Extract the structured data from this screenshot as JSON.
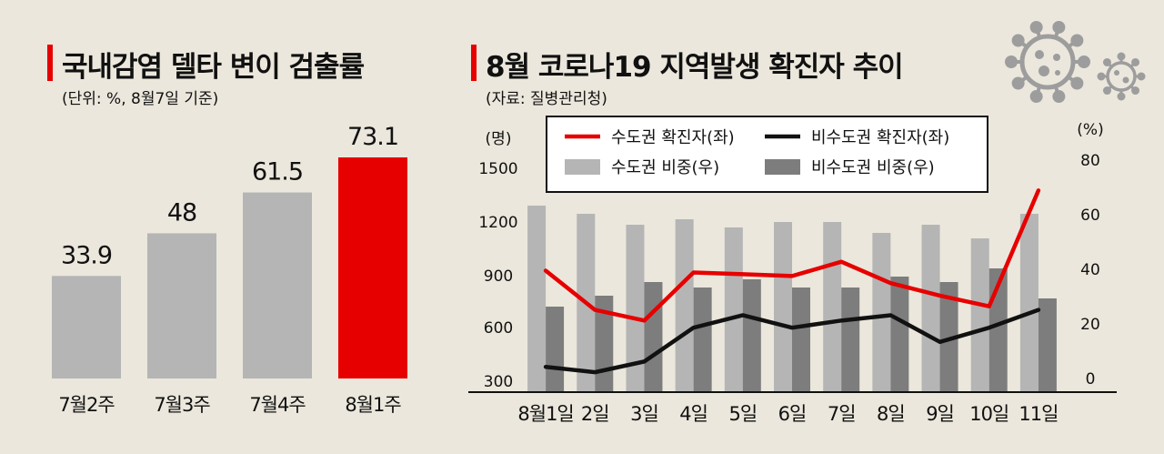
{
  "left_panel": {
    "title": "국내감염 델타 변이 검출률",
    "subtitle": "(단위: %, 8월7일 기준)"
  },
  "right_panel": {
    "title": "8월 코로나19 지역발생 확진자 추이",
    "subtitle": "(자료: 질병관리청)"
  },
  "icons": [
    "virus-icon",
    "virus-icon"
  ],
  "colors": {
    "background": "#ebe7dc",
    "accent_red": "#e60000",
    "bar_gray": "#b5b5b5",
    "bar_dark": "#7d7d7d"
  },
  "chart_data": [
    {
      "type": "bar",
      "title": "국내감염 델타 변이 검출률",
      "subtitle": "(단위: %, 8월7일 기준)",
      "categories": [
        "7월2주",
        "7월3주",
        "7월4주",
        "8월1주"
      ],
      "values": [
        33.9,
        48,
        61.5,
        73.1
      ],
      "value_labels": [
        "33.9",
        "48",
        "61.5",
        "73.1"
      ],
      "highlight_index": 3,
      "ylim": [
        0,
        80
      ]
    },
    {
      "type": "bar+line",
      "title": "8월 코로나19 지역발생 확진자 추이",
      "subtitle": "(자료: 질병관리청)",
      "categories": [
        "8월1일",
        "2일",
        "3일",
        "4일",
        "5일",
        "6일",
        "7일",
        "8일",
        "9일",
        "10일",
        "11일"
      ],
      "left_axis": {
        "unit": "(명)",
        "ticks": [
          "1500",
          "1200",
          "900",
          "600",
          "300"
        ],
        "ylim": [
          300,
          1500
        ]
      },
      "right_axis": {
        "unit": "(%)",
        "ticks": [
          "80",
          "60",
          "40",
          "20",
          "0"
        ],
        "ylim": [
          0,
          80
        ]
      },
      "grid": false,
      "legend_position": "top",
      "series": [
        {
          "name": "수도권 확진자(좌)",
          "kind": "line",
          "axis": "left",
          "color": "#e60000",
          "values": [
            900,
            680,
            620,
            890,
            880,
            870,
            950,
            830,
            760,
            700,
            1350
          ]
        },
        {
          "name": "비수도권 확진자(좌)",
          "kind": "line",
          "axis": "left",
          "color": "#111111",
          "values": [
            360,
            330,
            390,
            580,
            650,
            580,
            620,
            650,
            500,
            580,
            680
          ]
        },
        {
          "name": "수도권 비중(우)",
          "kind": "bar",
          "axis": "right",
          "color": "#b5b5b5",
          "values": [
            63,
            60,
            56,
            58,
            55,
            57,
            57,
            53,
            56,
            51,
            60
          ]
        },
        {
          "name": "비수도권 비중(우)",
          "kind": "bar",
          "axis": "right",
          "color": "#7d7d7d",
          "values": [
            26,
            30,
            35,
            33,
            36,
            33,
            33,
            37,
            35,
            40,
            29
          ]
        }
      ]
    }
  ]
}
